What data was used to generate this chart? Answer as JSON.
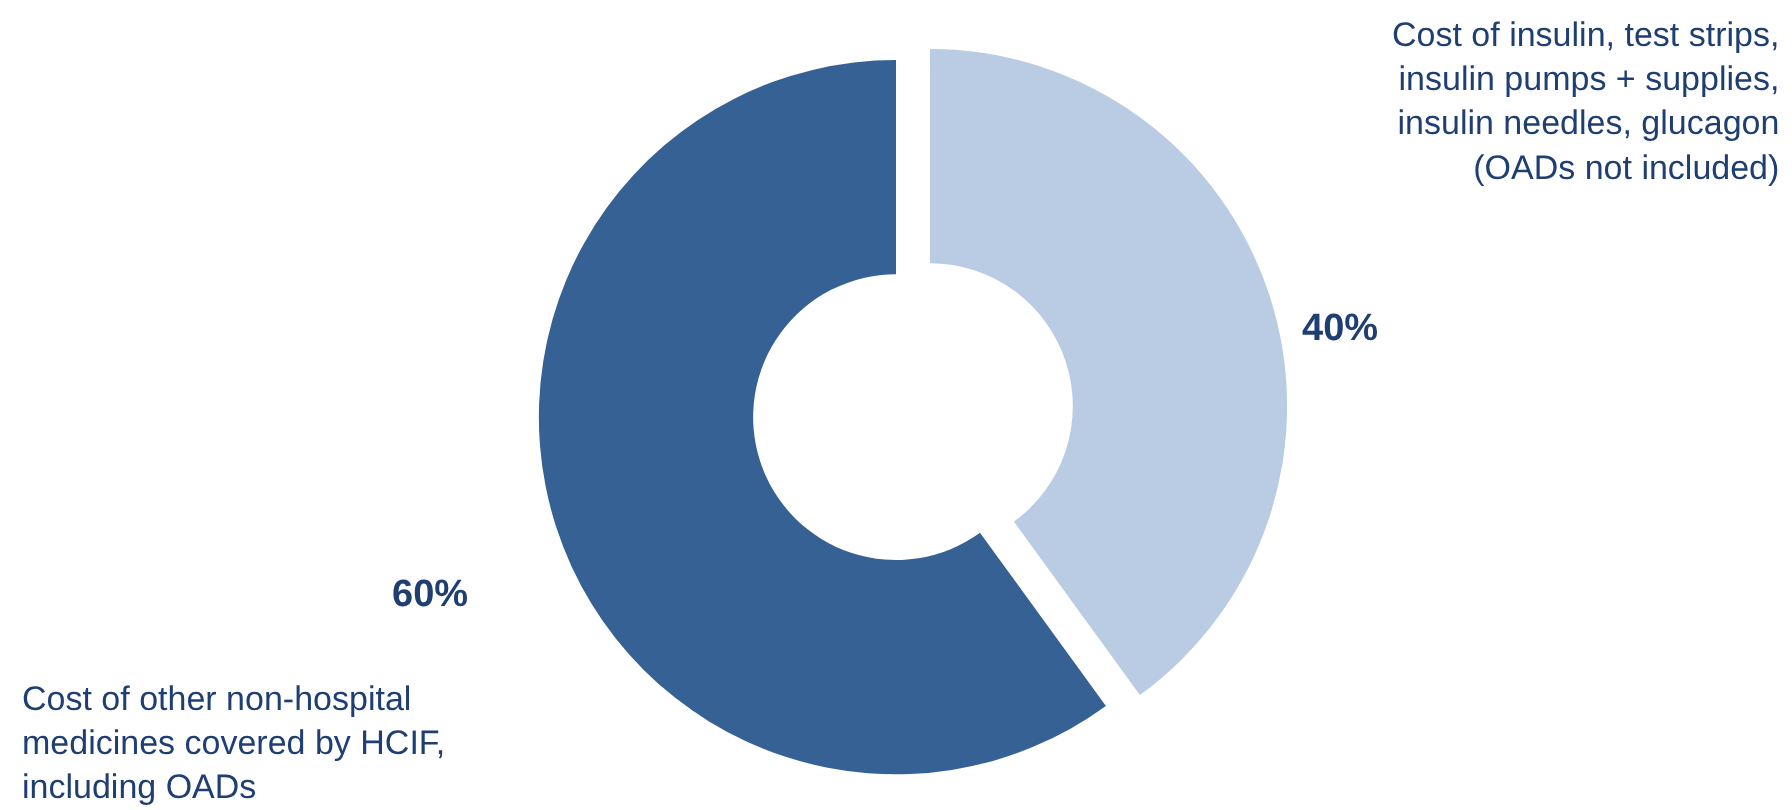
{
  "chart_data": {
    "type": "donut",
    "categories": [
      "Cost of insulin, test strips, insulin pumps + supplies, insulin needles, glucagon (OADs not included)",
      "Cost of other non-hospital medicines covered by HCIF, including OADs"
    ],
    "values": [
      40,
      60
    ],
    "colors": [
      "#b9cce4",
      "#366194"
    ],
    "value_labels": [
      "40%",
      "60%"
    ],
    "legend": false
  }
}
